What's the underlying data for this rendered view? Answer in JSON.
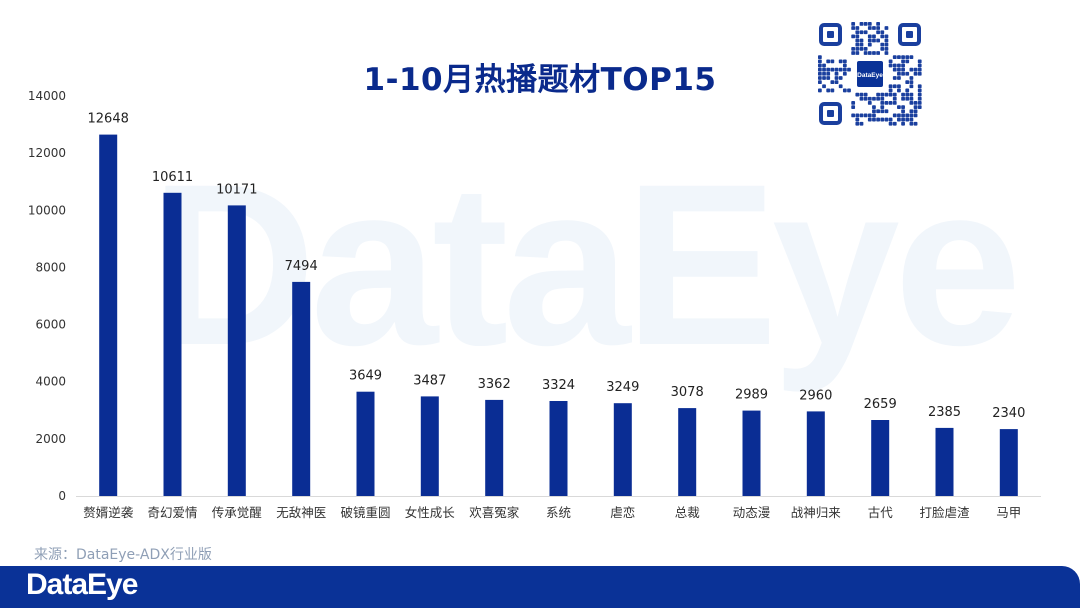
{
  "brand": {
    "watermark": "DataEye",
    "footer_logo": "DataEye",
    "qr_badge": "DataEye"
  },
  "colors": {
    "bar": "#0a2d94",
    "title": "#0a2a8c",
    "footer": "#0a3297",
    "axis": "#d9d9d9",
    "tick_text": "#333333"
  },
  "source_text": "来源：DataEye-ADX行业版",
  "chart_data": {
    "type": "bar",
    "title": "1-10月热播题材TOP15",
    "categories": [
      "赘婿逆袭",
      "奇幻爱情",
      "传承觉醒",
      "无敌神医",
      "破镜重圆",
      "女性成长",
      "欢喜冤家",
      "系统",
      "虐恋",
      "总裁",
      "动态漫",
      "战神归来",
      "古代",
      "打脸虐渣",
      "马甲"
    ],
    "values": [
      12648,
      10611,
      10171,
      7494,
      3649,
      3487,
      3362,
      3324,
      3249,
      3078,
      2989,
      2960,
      2659,
      2385,
      2340
    ],
    "y_ticks": [
      0,
      2000,
      4000,
      6000,
      8000,
      10000,
      12000,
      14000
    ],
    "ylim": [
      0,
      14000
    ],
    "xlabel": "",
    "ylabel": "",
    "grid": false,
    "data_labels": true,
    "legend": "none"
  }
}
